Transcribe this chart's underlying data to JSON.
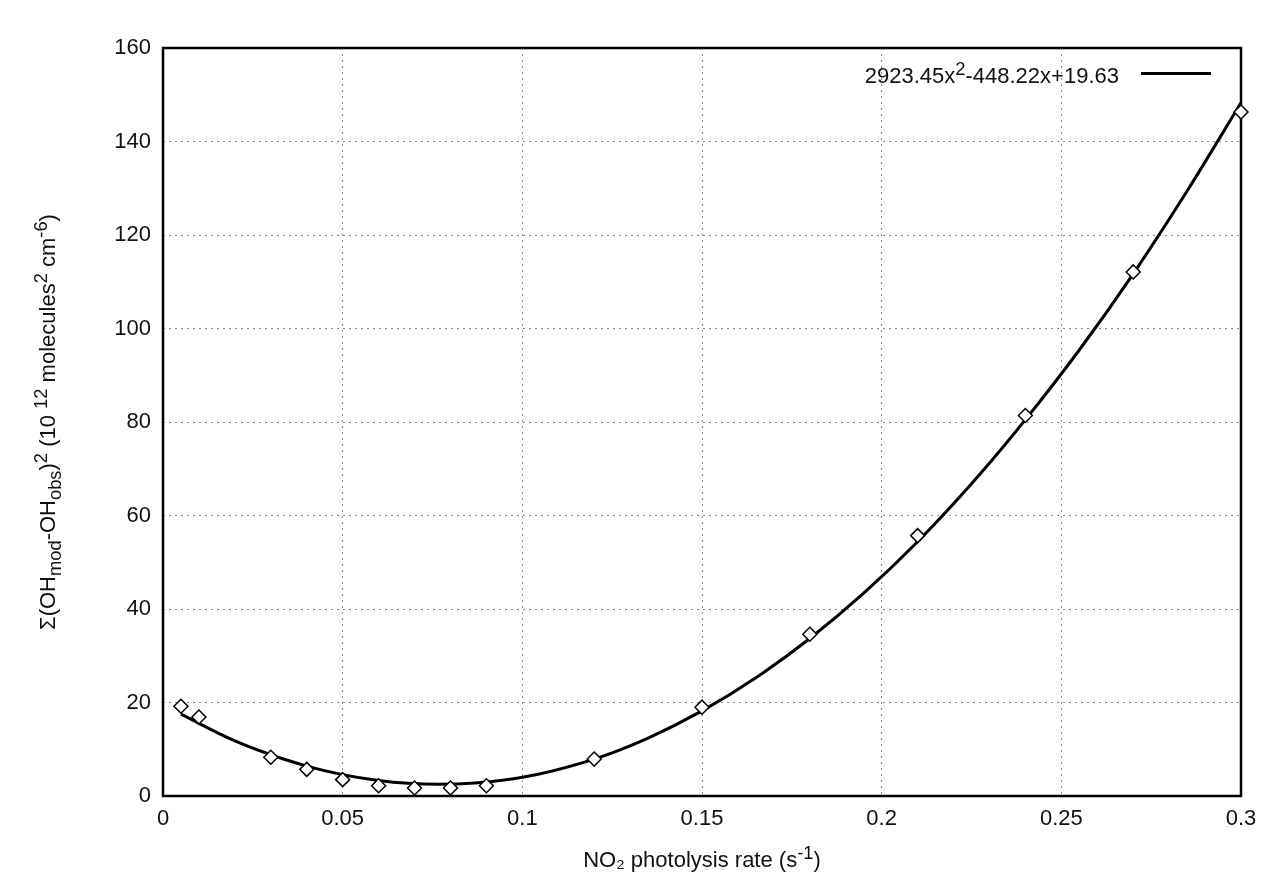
{
  "chart_data": {
    "type": "scatter",
    "xlabel": "NO₂ photolysis rate (s$^{-1}$)",
    "ylabel": "Σ(OH$_{mod}$-OH$_{obs}$)$^{2}$ (10 $^{12}$ molecules$^{2}$ cm$^{-6}$)",
    "xlim": [
      0,
      0.3
    ],
    "xticks": [
      0,
      0.05,
      0.1,
      0.15,
      0.2,
      0.25,
      0.3
    ],
    "ylim": [
      0,
      160
    ],
    "yticks": [
      0,
      20,
      40,
      60,
      80,
      100,
      120,
      140,
      160
    ],
    "grid": true,
    "legend": "top right",
    "series": [
      {
        "type": "scatter",
        "color": "#000000",
        "marker": "diamond",
        "x": [
          0.005,
          0.01,
          0.03,
          0.04,
          0.05,
          0.06,
          0.07,
          0.08,
          0.09,
          0.12,
          0.15,
          0.18,
          0.21,
          0.24,
          0.27,
          0.3
        ],
        "values": [
          19.2,
          16.9,
          8.3,
          5.7,
          3.5,
          2.2,
          1.7,
          1.7,
          2.2,
          7.9,
          19.0,
          34.6,
          55.7,
          81.4,
          112.1,
          146.3
        ]
      },
      {
        "type": "line",
        "name": "2923.45x$^{2}$-448.22x+19.63",
        "color": "#000000",
        "marker": "none",
        "line_style": "solid",
        "x": [
          0.005,
          0.02,
          0.04,
          0.06,
          0.077,
          0.1,
          0.12,
          0.135,
          0.15,
          0.165,
          0.18,
          0.195,
          0.21,
          0.225,
          0.24,
          0.255,
          0.27,
          0.285,
          0.3
        ],
        "values": [
          17.5,
          11.8,
          6.4,
          3.3,
          2.5,
          4.0,
          7.9,
          12.4,
          18.2,
          25.3,
          33.7,
          43.4,
          54.4,
          66.8,
          80.5,
          95.4,
          111.7,
          129.4,
          148.3
        ]
      }
    ]
  }
}
